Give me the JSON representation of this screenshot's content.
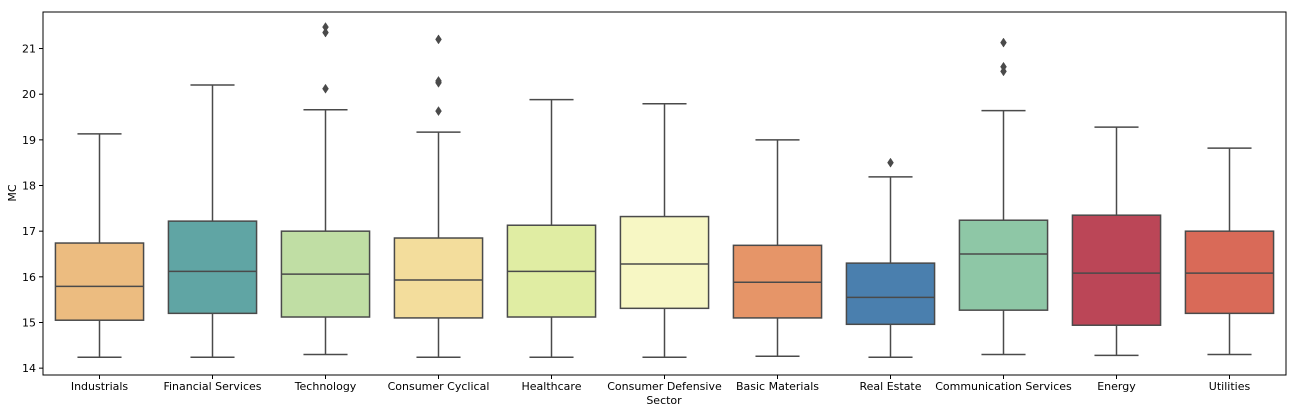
{
  "chart_data": {
    "type": "box",
    "xlabel": "Sector",
    "ylabel": "MC",
    "ylim": [
      13.85,
      21.8
    ],
    "yticks": [
      14,
      15,
      16,
      17,
      18,
      19,
      20,
      21
    ],
    "grid": false,
    "categories": [
      "Industrials",
      "Financial Services",
      "Technology",
      "Consumer Cyclical",
      "Healthcare",
      "Consumer Defensive",
      "Basic Materials",
      "Real Estate",
      "Communication Services",
      "Energy",
      "Utilities"
    ],
    "boxes": [
      {
        "category": "Industrials",
        "whislo": 14.24,
        "q1": 15.05,
        "med": 15.79,
        "q3": 16.74,
        "whishi": 19.13,
        "fliers": [],
        "color": "#ecbc80"
      },
      {
        "category": "Financial Services",
        "whislo": 14.24,
        "q1": 15.2,
        "med": 16.12,
        "q3": 17.22,
        "whishi": 20.2,
        "fliers": [],
        "color": "#60a5a4"
      },
      {
        "category": "Technology",
        "whislo": 14.3,
        "q1": 15.12,
        "med": 16.06,
        "q3": 17.0,
        "whishi": 19.66,
        "fliers": [
          20.12,
          21.35,
          21.47
        ],
        "color": "#c0dea4"
      },
      {
        "category": "Consumer Cyclical",
        "whislo": 14.24,
        "q1": 15.1,
        "med": 15.93,
        "q3": 16.85,
        "whishi": 19.17,
        "fliers": [
          19.63,
          20.25,
          20.29,
          21.2
        ],
        "color": "#f3dd9c"
      },
      {
        "category": "Healthcare",
        "whislo": 14.24,
        "q1": 15.12,
        "med": 16.12,
        "q3": 17.13,
        "whishi": 19.88,
        "fliers": [],
        "color": "#e0eda3"
      },
      {
        "category": "Consumer Defensive",
        "whislo": 14.24,
        "q1": 15.31,
        "med": 16.28,
        "q3": 17.32,
        "whishi": 19.79,
        "fliers": [],
        "color": "#f7f7c4"
      },
      {
        "category": "Basic Materials",
        "whislo": 14.26,
        "q1": 15.1,
        "med": 15.88,
        "q3": 16.69,
        "whishi": 19.0,
        "fliers": [],
        "color": "#e69568"
      },
      {
        "category": "Real Estate",
        "whislo": 14.24,
        "q1": 14.96,
        "med": 15.55,
        "q3": 16.3,
        "whishi": 18.19,
        "fliers": [
          18.5
        ],
        "color": "#4a7fae"
      },
      {
        "category": "Communication Services",
        "whislo": 14.3,
        "q1": 15.27,
        "med": 16.5,
        "q3": 17.24,
        "whishi": 19.64,
        "fliers": [
          20.5,
          20.6,
          21.13
        ],
        "color": "#8ec7a6"
      },
      {
        "category": "Energy",
        "whislo": 14.28,
        "q1": 14.94,
        "med": 16.08,
        "q3": 17.35,
        "whishi": 19.28,
        "fliers": [],
        "color": "#bb4657"
      },
      {
        "category": "Utilities",
        "whislo": 14.3,
        "q1": 15.2,
        "med": 16.08,
        "q3": 17.0,
        "whishi": 18.82,
        "fliers": [],
        "color": "#d96a58"
      }
    ],
    "line_color": "#4a4a4a"
  }
}
